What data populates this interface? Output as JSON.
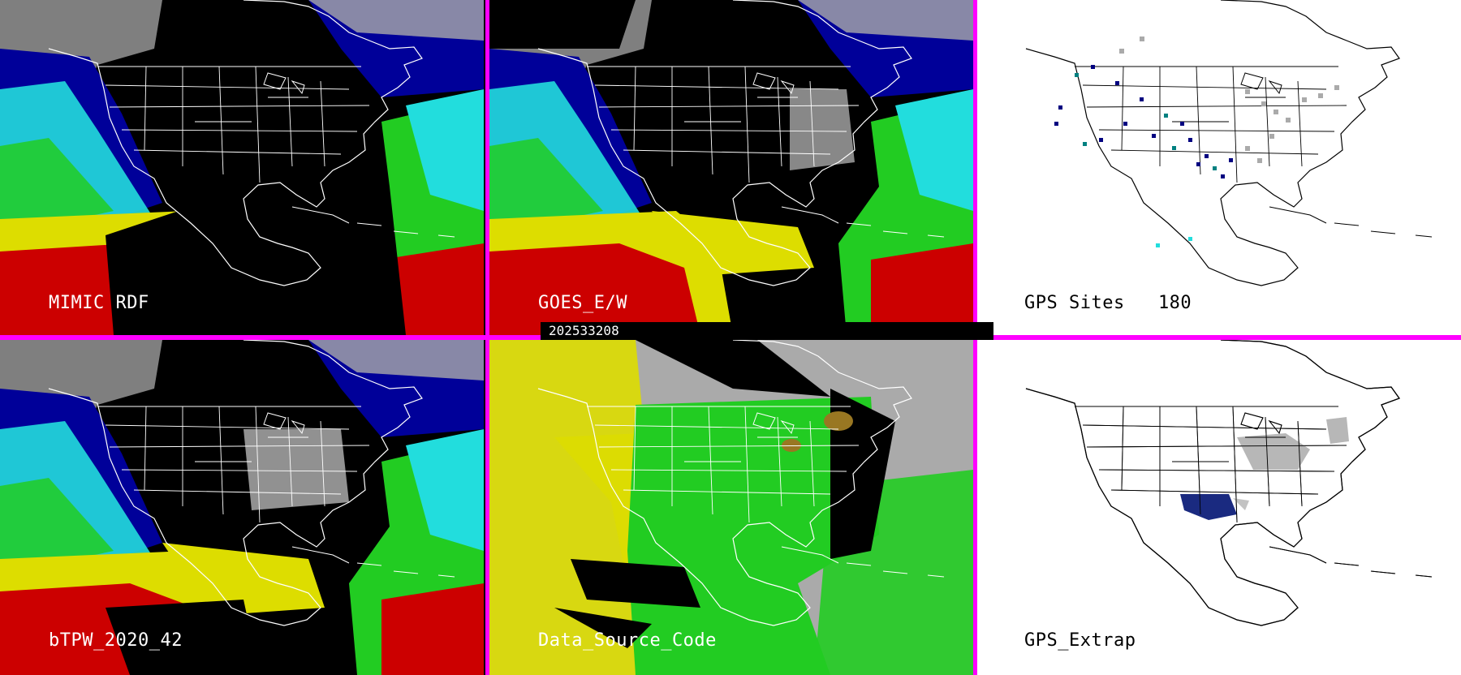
{
  "panels": [
    {
      "id": "mimic",
      "label": "MIMIC RDF",
      "style": "tpw-partial"
    },
    {
      "id": "goes",
      "label": "GOES_E/W",
      "style": "tpw-goes"
    },
    {
      "id": "gps-sites",
      "label": "GPS Sites   180",
      "style": "gps-sites"
    },
    {
      "id": "btpw",
      "label": "bTPW_2020_42",
      "style": "tpw-blend"
    },
    {
      "id": "source",
      "label": "Data_Source_Code",
      "style": "source-code"
    },
    {
      "id": "gps-extrap",
      "label": "GPS_Extrap",
      "style": "gps-extrap"
    }
  ],
  "timestamp": "202533208",
  "colors": {
    "divider": "#ff00ff",
    "red": "#cc0000",
    "yellow": "#dddd00",
    "green": "#22cc22",
    "cyan": "#22dddd",
    "blue": "#000099",
    "gray": "#aaaaaa",
    "white": "#ffffff",
    "black": "#000000"
  }
}
